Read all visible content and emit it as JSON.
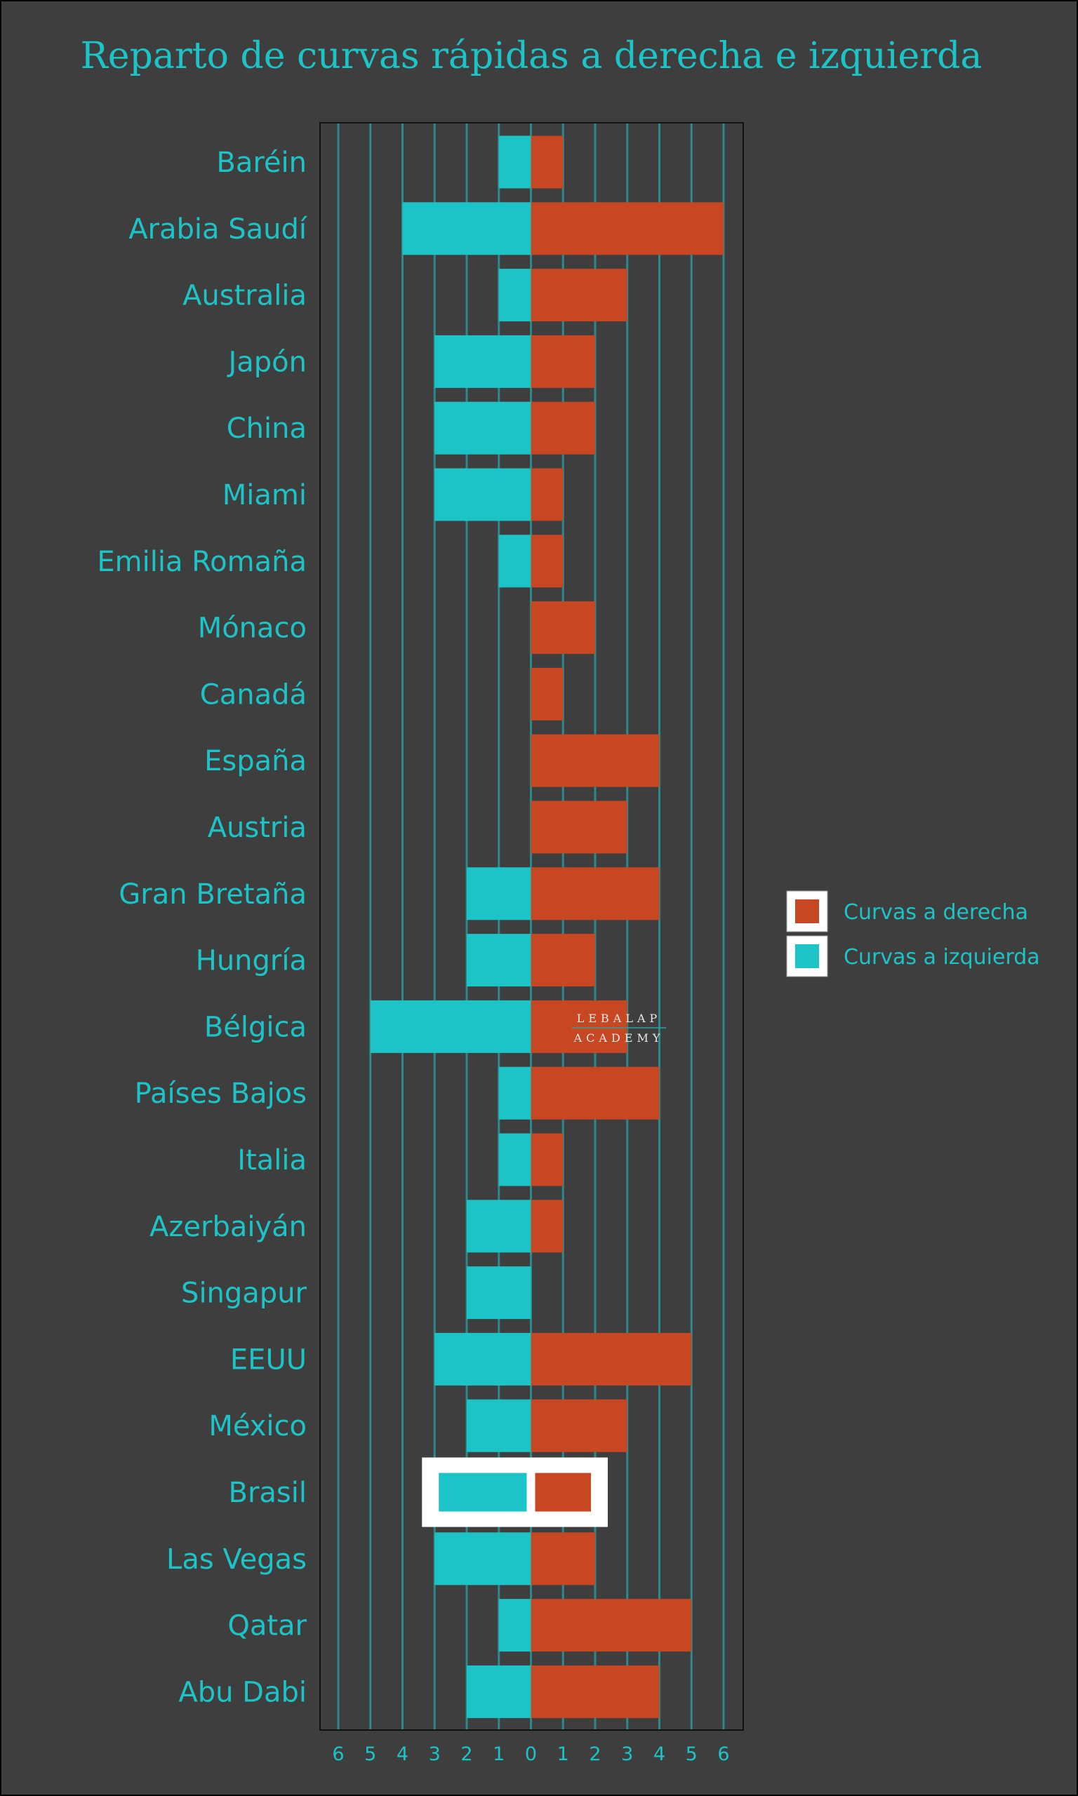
{
  "chart_data": {
    "type": "bar",
    "orientation": "horizontal-diverging",
    "title": "Reparto de curvas rápidas a derecha e izquierda",
    "categories": [
      "Baréin",
      "Arabia Saudí",
      "Australia",
      "Japón",
      "China",
      "Miami",
      "Emilia Romaña",
      "Mónaco",
      "Canadá",
      "España",
      "Austria",
      "Gran Bretaña",
      "Hungría",
      "Bélgica",
      "Países Bajos",
      "Italia",
      "Azerbaiyán",
      "Singapur",
      "EEUU",
      "México",
      "Brasil",
      "Las Vegas",
      "Qatar",
      "Abu Dabi"
    ],
    "series": [
      {
        "name": "Curvas a derecha",
        "color": "#c64722",
        "values": [
          1,
          6,
          3,
          2,
          2,
          1,
          1,
          2,
          1,
          4,
          3,
          4,
          2,
          3,
          4,
          1,
          1,
          0,
          5,
          3,
          2,
          2,
          5,
          4
        ]
      },
      {
        "name": "Curvas a izquierda",
        "color": "#1cc4c7",
        "values": [
          1,
          4,
          1,
          3,
          3,
          3,
          1,
          0,
          0,
          0,
          0,
          2,
          2,
          5,
          1,
          1,
          2,
          2,
          3,
          2,
          3,
          3,
          1,
          2
        ]
      }
    ],
    "highlighted_category": "Brasil",
    "xlim": [
      -6,
      6
    ],
    "x_tick_labels": [
      "6",
      "5",
      "4",
      "3",
      "2",
      "1",
      "0",
      "1",
      "2",
      "3",
      "4",
      "5",
      "6"
    ],
    "grid": true,
    "legend_position": "right",
    "watermark": [
      "LEBALAP",
      "ACADEMY"
    ]
  },
  "colors": {
    "background": "#3e3e3e",
    "text": "#1cc4c7",
    "grid": "#2e8a8a"
  }
}
